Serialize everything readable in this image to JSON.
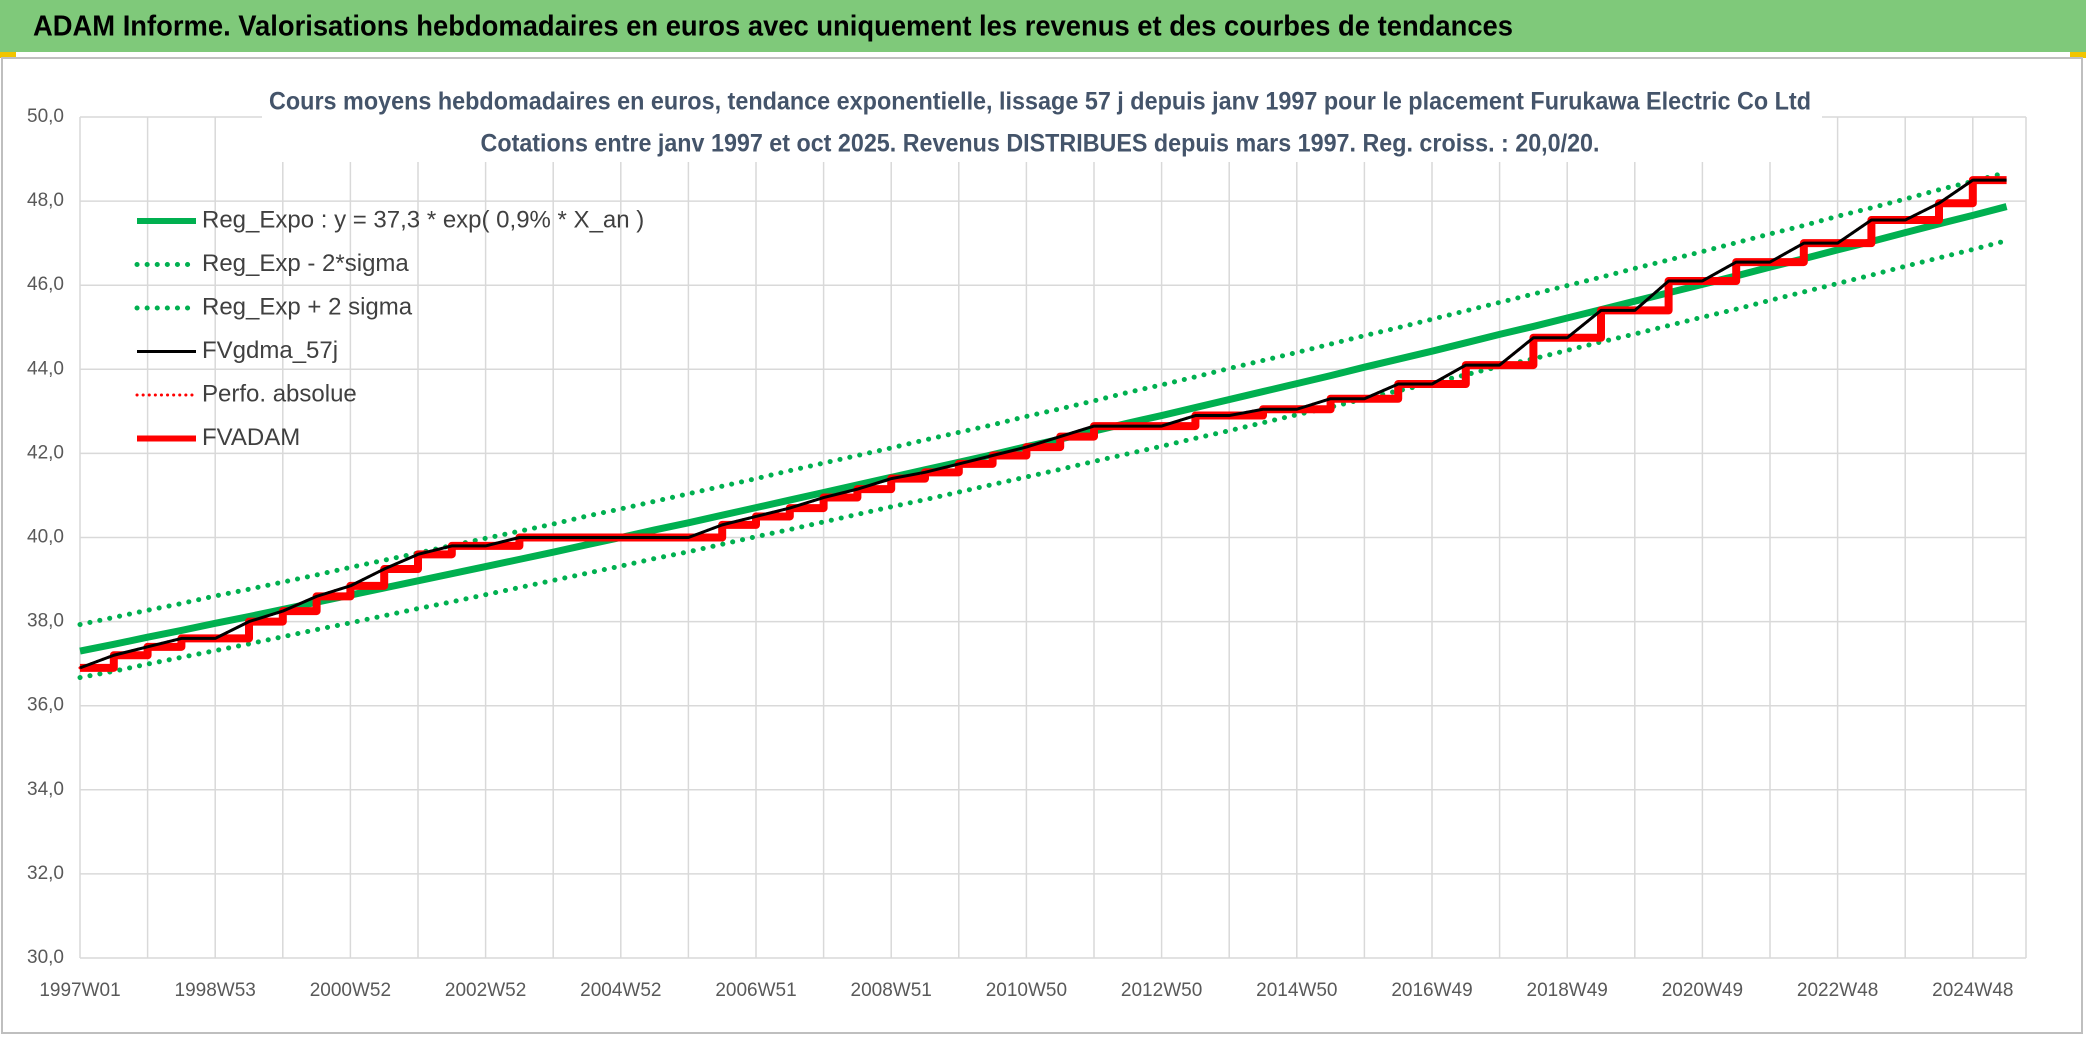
{
  "header": {
    "title": "ADAM Informe. Valorisations hebdomadaires en euros avec uniquement les revenus et des courbes de tendances"
  },
  "chart_data": {
    "type": "line",
    "title": "Cours moyens hebdomadaires en euros, tendance exponentielle, lissage 57 j depuis janv 1997 pour le placement Furukawa Electric Co Ltd",
    "subtitle": "Cotations entre janv 1997 et oct 2025. Revenus DISTRIBUES depuis mars 1997. Reg. croiss. : 20,0/20.",
    "categories": [
      "1997W01",
      null,
      null,
      null,
      "1998W53",
      null,
      null,
      null,
      "2000W52",
      null,
      null,
      null,
      "2002W52",
      null,
      null,
      null,
      "2004W52",
      null,
      null,
      null,
      "2006W51",
      null,
      null,
      null,
      "2008W51",
      null,
      null,
      null,
      "2010W50",
      null,
      null,
      null,
      "2012W50",
      null,
      null,
      null,
      "2014W50",
      null,
      null,
      null,
      "2016W49",
      null,
      null,
      null,
      "2018W49",
      null,
      null,
      null,
      "2020W49",
      null,
      null,
      null,
      "2022W48",
      null,
      null,
      null,
      "2024W48",
      null
    ],
    "ylim": [
      30,
      50
    ],
    "yticks": [
      {
        "value": 30,
        "label": "30,0"
      },
      {
        "value": 32,
        "label": "32,0"
      },
      {
        "value": 34,
        "label": "34,0"
      },
      {
        "value": 36,
        "label": "36,0"
      },
      {
        "value": 38,
        "label": "38,0"
      },
      {
        "value": 40,
        "label": "40,0"
      },
      {
        "value": 42,
        "label": "42,0"
      },
      {
        "value": 44,
        "label": "44,0"
      },
      {
        "value": 46,
        "label": "46,0"
      },
      {
        "value": 48,
        "label": "48,0"
      },
      {
        "value": 50,
        "label": "50,0"
      }
    ],
    "grid": true,
    "legend": "upper left",
    "series": [
      {
        "name": "Reg_Expo : y = 37,3 * exp( 0,9% *  X_an )",
        "color": "#00b050",
        "style": "solid",
        "values": [
          37.3,
          37.46,
          37.63,
          37.79,
          37.96,
          38.12,
          38.29,
          38.46,
          38.63,
          38.8,
          38.97,
          39.14,
          39.31,
          39.48,
          39.65,
          39.83,
          40.0,
          40.18,
          40.35,
          40.53,
          40.71,
          40.89,
          41.07,
          41.25,
          41.43,
          41.61,
          41.79,
          41.97,
          42.16,
          42.34,
          42.53,
          42.72,
          42.9,
          43.09,
          43.28,
          43.47,
          43.66,
          43.85,
          44.05,
          44.24,
          44.43,
          44.63,
          44.83,
          45.02,
          45.22,
          45.42,
          45.62,
          45.82,
          46.02,
          46.22,
          46.43,
          46.63,
          46.84,
          47.04,
          47.25,
          47.46,
          47.66,
          47.87
        ]
      },
      {
        "name": "Reg_Exp - 2*sigma",
        "color": "#00b050",
        "style": "dotted",
        "values": [
          36.67,
          36.82,
          36.99,
          37.15,
          37.31,
          37.47,
          37.64,
          37.81,
          37.97,
          38.14,
          38.31,
          38.47,
          38.64,
          38.81,
          38.98,
          39.15,
          39.32,
          39.5,
          39.66,
          39.84,
          40.02,
          40.19,
          40.37,
          40.55,
          40.73,
          40.9,
          41.08,
          41.26,
          41.44,
          41.62,
          41.81,
          41.99,
          42.17,
          42.36,
          42.54,
          42.73,
          42.92,
          43.1,
          43.3,
          43.49,
          43.67,
          43.87,
          44.07,
          44.25,
          44.45,
          44.65,
          44.84,
          45.04,
          45.24,
          45.43,
          45.64,
          45.84,
          46.04,
          46.24,
          46.45,
          46.65,
          46.85,
          47.06
        ]
      },
      {
        "name": "Reg_Exp + 2 sigma",
        "color": "#00b050",
        "style": "dotted",
        "values": [
          37.93,
          38.1,
          38.27,
          38.43,
          38.61,
          38.77,
          38.94,
          39.11,
          39.29,
          39.46,
          39.63,
          39.81,
          39.98,
          40.15,
          40.32,
          40.51,
          40.68,
          40.86,
          41.04,
          41.22,
          41.4,
          41.59,
          41.77,
          41.95,
          42.13,
          42.32,
          42.5,
          42.68,
          42.88,
          43.06,
          43.25,
          43.45,
          43.63,
          43.82,
          44.02,
          44.21,
          44.4,
          44.6,
          44.8,
          44.99,
          45.19,
          45.39,
          45.59,
          45.79,
          45.99,
          46.19,
          46.4,
          46.6,
          46.8,
          47.01,
          47.22,
          47.42,
          47.64,
          47.84,
          48.05,
          48.27,
          48.47,
          48.68
        ]
      },
      {
        "name": "FVgdma_57j",
        "color": "#000000",
        "style": "solid",
        "values": [
          36.9,
          37.2,
          37.4,
          37.6,
          37.6,
          38.0,
          38.25,
          38.6,
          38.85,
          39.25,
          39.6,
          39.8,
          39.8,
          40.0,
          40.0,
          40.0,
          40.0,
          40.0,
          40.0,
          40.3,
          40.5,
          40.7,
          40.95,
          41.15,
          41.4,
          41.55,
          41.75,
          41.95,
          42.15,
          42.4,
          42.65,
          42.65,
          42.65,
          42.9,
          42.9,
          43.05,
          43.05,
          43.3,
          43.3,
          43.65,
          43.65,
          44.1,
          44.1,
          44.75,
          44.75,
          45.4,
          45.4,
          46.1,
          46.1,
          46.55,
          46.55,
          47.0,
          47.0,
          47.55,
          47.55,
          47.95,
          48.5,
          48.5
        ]
      },
      {
        "name": "Perfo. absolue",
        "color": "#ff0000",
        "style": "dotted",
        "values": [
          36.9,
          37.2,
          37.4,
          37.6,
          37.6,
          38.0,
          38.25,
          38.6,
          38.85,
          39.25,
          39.6,
          39.8,
          39.8,
          40.0,
          40.0,
          40.0,
          40.0,
          40.0,
          40.0,
          40.3,
          40.5,
          40.7,
          40.95,
          41.15,
          41.4,
          41.55,
          41.75,
          41.95,
          42.15,
          42.4,
          42.65,
          42.65,
          42.65,
          42.9,
          42.9,
          43.05,
          43.05,
          43.3,
          43.3,
          43.65,
          43.65,
          44.1,
          44.1,
          44.75,
          44.75,
          45.4,
          45.4,
          46.1,
          46.1,
          46.55,
          46.55,
          47.0,
          47.0,
          47.55,
          47.55,
          47.95,
          48.5,
          48.5
        ]
      },
      {
        "name": "FVADAM",
        "color": "#ff0000",
        "style": "solid",
        "step": true,
        "values": [
          36.9,
          37.2,
          37.4,
          37.6,
          37.6,
          38.0,
          38.25,
          38.6,
          38.85,
          39.25,
          39.6,
          39.8,
          39.8,
          40.0,
          40.0,
          40.0,
          40.0,
          40.0,
          40.0,
          40.3,
          40.5,
          40.7,
          40.95,
          41.15,
          41.4,
          41.55,
          41.75,
          41.95,
          42.15,
          42.4,
          42.65,
          42.65,
          42.65,
          42.9,
          42.9,
          43.05,
          43.05,
          43.3,
          43.3,
          43.65,
          43.65,
          44.1,
          44.1,
          44.75,
          44.75,
          45.4,
          45.4,
          46.1,
          46.1,
          46.55,
          46.55,
          47.0,
          47.0,
          47.55,
          47.55,
          47.95,
          48.5,
          48.5
        ]
      }
    ]
  }
}
